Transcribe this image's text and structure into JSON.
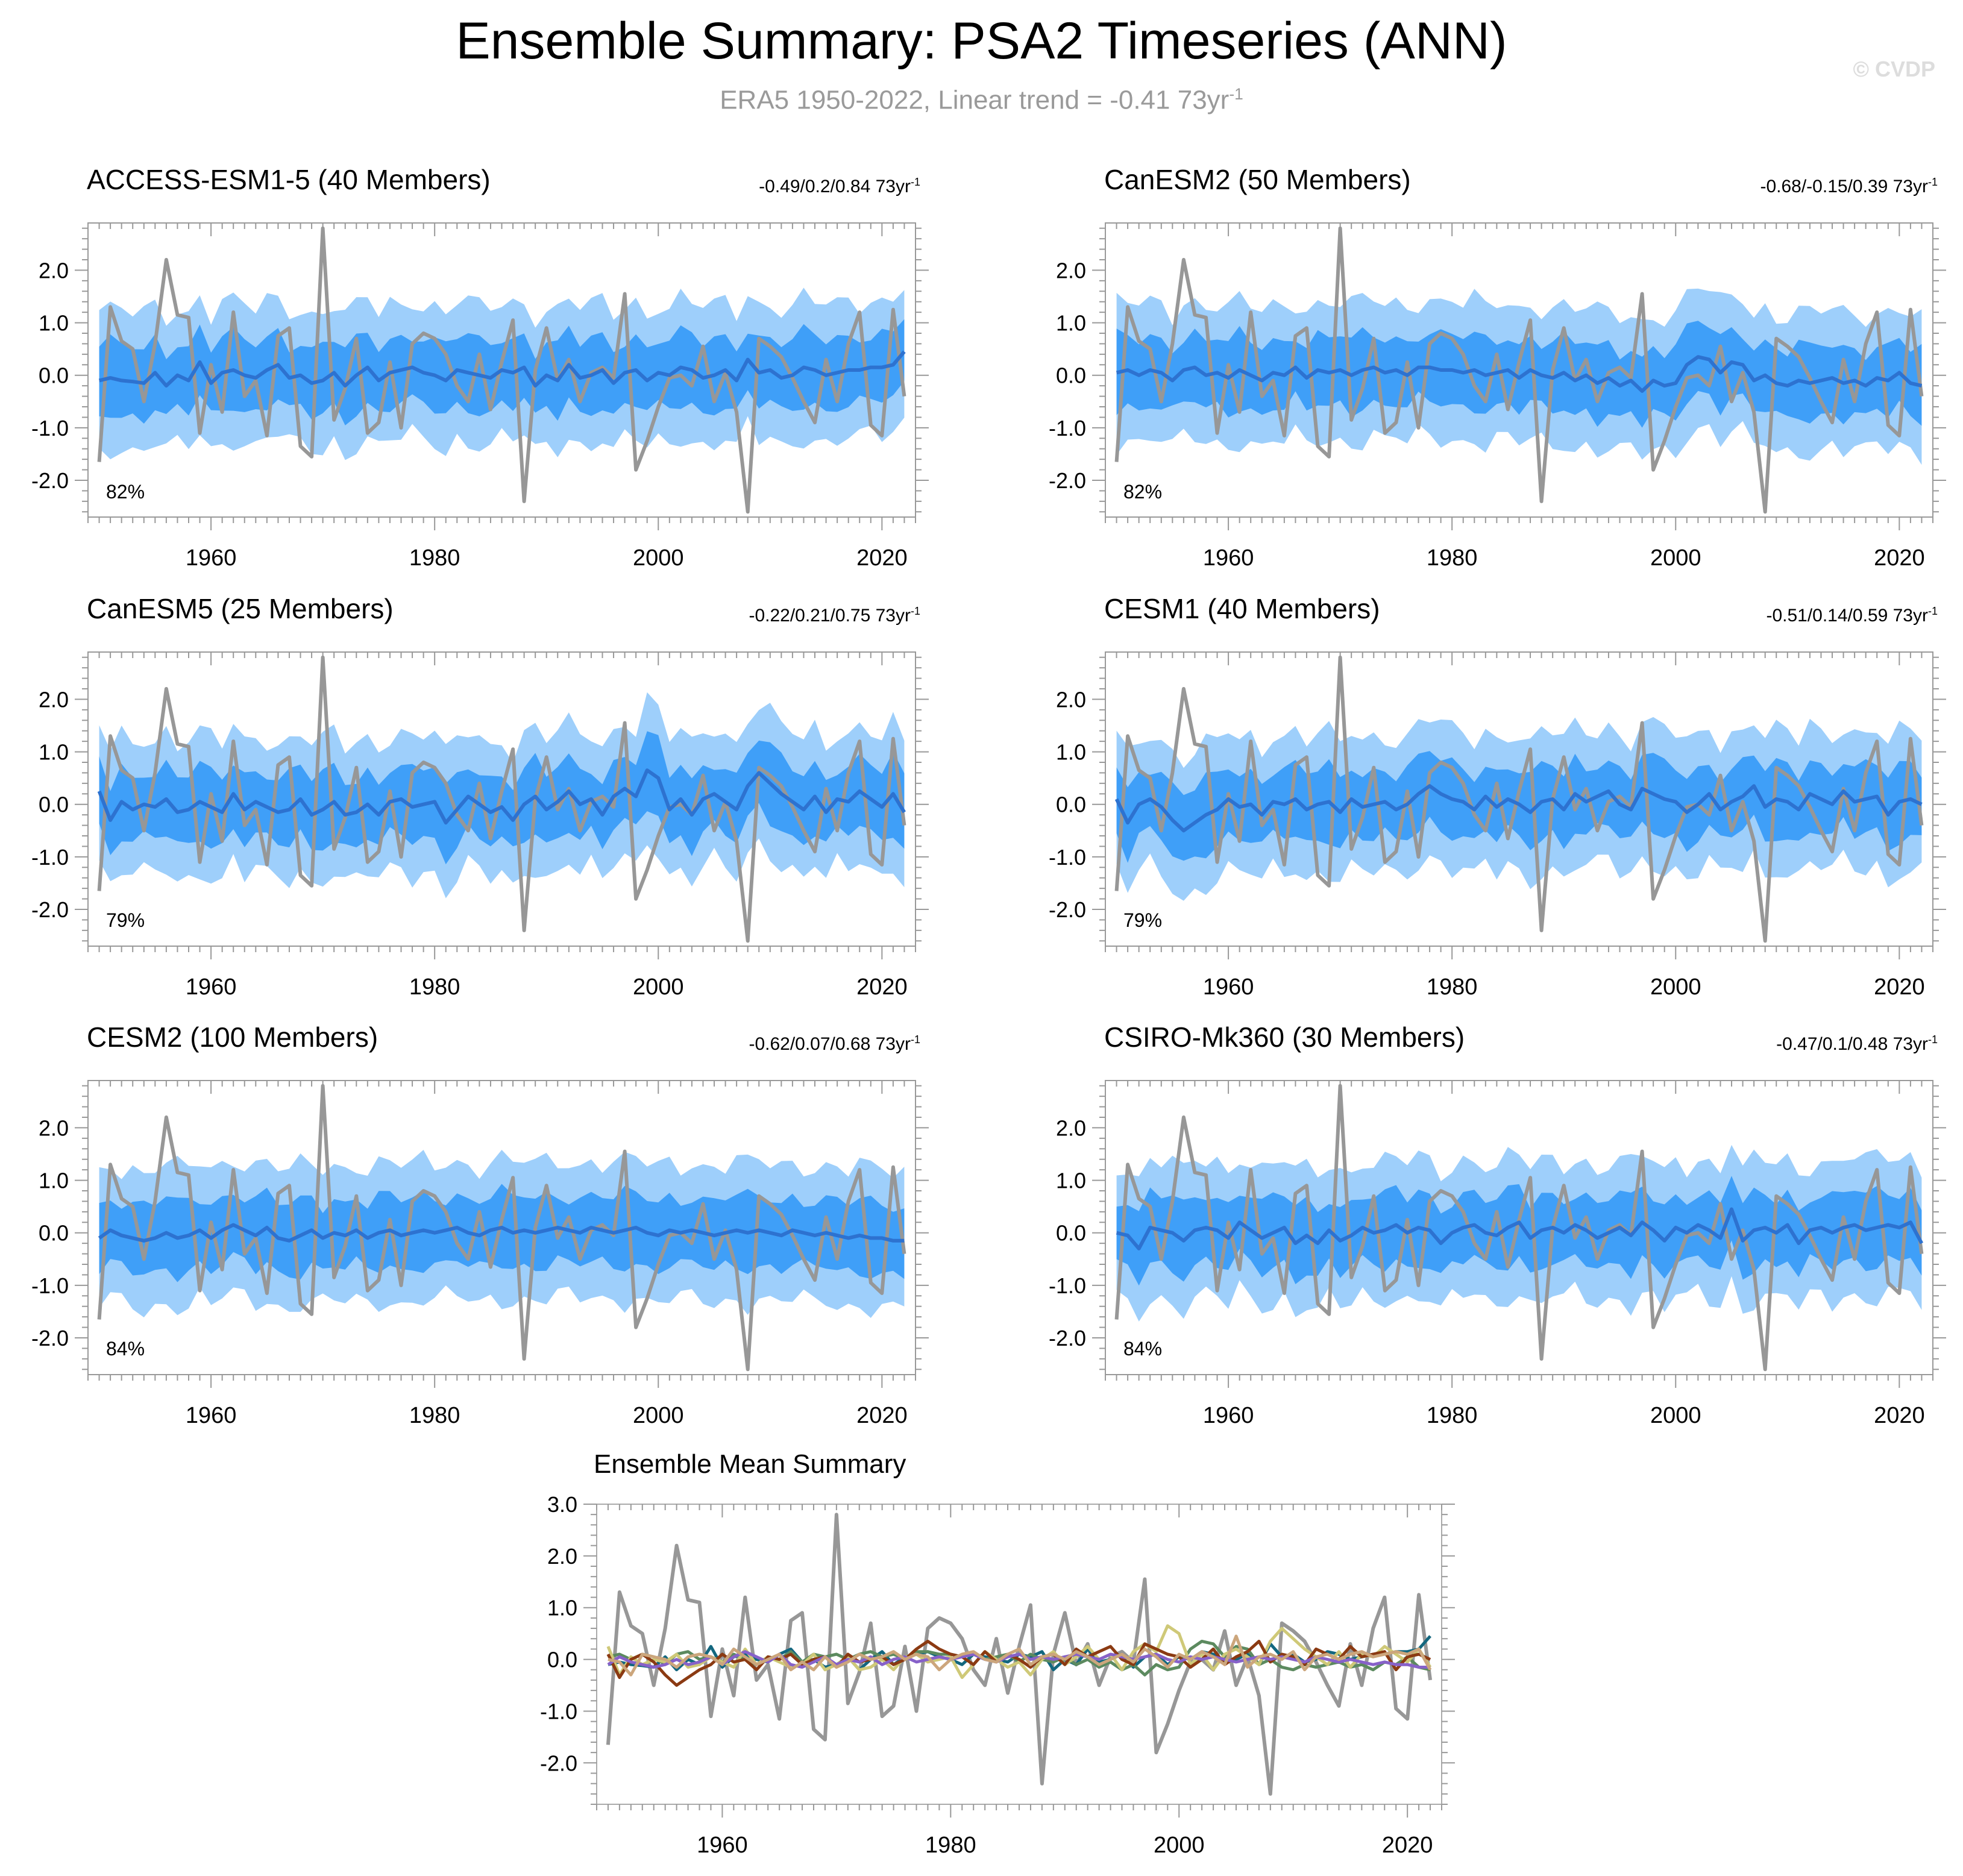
{
  "title": "Ensemble Summary: PSA2 Timeseries (ANN)",
  "subtitle": "ERA5 1950-2022, Linear trend = -0.41 73yr",
  "subtitle_sup": "-1",
  "watermark": "© CVDP",
  "trend_sup": "-1",
  "colors": {
    "outer_band": "#9ecffb",
    "inner_band": "#3f9ff8",
    "ensemble_mean": "#2d72d0",
    "observations": "#979797"
  },
  "chart_data": [
    {
      "type": "line",
      "title": "ACCESS-ESM1-5 (40 Members)",
      "title_color": "#13677f",
      "trend_label": "-0.49/0.2/0.84 73yr",
      "percent_label": "82%",
      "ylim": [
        -2.7,
        2.9
      ],
      "xlim": [
        1949,
        2023
      ],
      "yticks": [
        "2.0",
        "1.0",
        "0.0",
        "-1.0",
        "-2.0"
      ],
      "xticks": [
        "1960",
        "1980",
        "2000",
        "2020"
      ],
      "series": [
        {
          "values": [
            -0.1,
            -0.05,
            -0.1,
            -0.12,
            -0.15,
            0.05,
            -0.2,
            0.0,
            -0.1,
            0.25,
            -0.15,
            0.05,
            0.1,
            0.0,
            -0.05,
            0.1,
            0.2,
            -0.05,
            0.0,
            -0.15,
            -0.1,
            0.05,
            -0.2,
            0.0,
            0.15,
            -0.1,
            0.05,
            0.1,
            0.15,
            0.05,
            0.0,
            -0.1,
            0.1,
            0.05,
            0.0,
            -0.05,
            0.1,
            0.05,
            0.15,
            -0.2,
            0.0,
            -0.1,
            0.2,
            -0.05,
            0.0,
            0.1,
            -0.15,
            0.05,
            0.1,
            -0.1,
            0.05,
            0.0,
            0.15,
            0.1,
            -0.05,
            0.0,
            0.1,
            -0.1,
            0.3,
            0.05,
            0.1,
            -0.05,
            0.0,
            0.15,
            0.1,
            0.0,
            0.05,
            0.1,
            0.1,
            0.15,
            0.15,
            0.2,
            0.45
          ]
        }
      ]
    },
    {
      "type": "line",
      "title": "CanESM2 (50 Members)",
      "title_color": "#5c8a5f",
      "trend_label": "-0.68/-0.15/0.39 73yr",
      "percent_label": "82%",
      "ylim": [
        -2.7,
        2.9
      ],
      "xlim": [
        1949,
        2023
      ],
      "yticks": [
        "2.0",
        "1.0",
        "0.0",
        "-1.0",
        "-2.0"
      ],
      "xticks": [
        "1960",
        "1980",
        "2000",
        "2020"
      ],
      "series": [
        {
          "values": [
            0.05,
            0.1,
            0.0,
            0.1,
            0.05,
            -0.1,
            0.1,
            0.15,
            0.0,
            0.05,
            -0.05,
            0.1,
            0.0,
            -0.1,
            0.05,
            0.0,
            0.15,
            -0.05,
            0.1,
            0.05,
            0.1,
            0.0,
            0.1,
            0.15,
            0.05,
            0.1,
            0.0,
            0.15,
            0.15,
            0.1,
            0.1,
            0.05,
            0.1,
            0.0,
            0.05,
            0.1,
            -0.05,
            0.1,
            0.0,
            -0.05,
            0.05,
            -0.1,
            0.0,
            -0.15,
            -0.05,
            -0.2,
            -0.1,
            -0.3,
            -0.1,
            -0.2,
            -0.15,
            0.2,
            0.35,
            0.3,
            0.05,
            0.25,
            0.2,
            -0.1,
            0.0,
            -0.15,
            -0.2,
            -0.1,
            -0.15,
            -0.1,
            -0.05,
            -0.15,
            -0.1,
            -0.2,
            -0.05,
            -0.1,
            0.05,
            -0.15,
            -0.2
          ]
        }
      ]
    },
    {
      "type": "line",
      "title": "CanESM5 (25 Members)",
      "title_color": "#cfc978",
      "trend_label": "-0.22/0.21/0.75 73yr",
      "percent_label": "79%",
      "ylim": [
        -2.7,
        2.9
      ],
      "xlim": [
        1949,
        2023
      ],
      "yticks": [
        "2.0",
        "1.0",
        "0.0",
        "-1.0",
        "-2.0"
      ],
      "xticks": [
        "1960",
        "1980",
        "2000",
        "2020"
      ],
      "series": [
        {
          "values": [
            0.25,
            -0.3,
            0.05,
            -0.1,
            0.0,
            -0.05,
            0.1,
            -0.15,
            -0.1,
            0.05,
            -0.05,
            -0.15,
            0.2,
            -0.1,
            0.05,
            -0.05,
            -0.15,
            -0.1,
            0.1,
            -0.2,
            -0.1,
            0.05,
            -0.2,
            -0.15,
            0.0,
            -0.2,
            0.05,
            0.1,
            -0.05,
            0.0,
            0.05,
            -0.35,
            -0.1,
            0.15,
            0.0,
            -0.15,
            -0.05,
            -0.3,
            0.0,
            0.15,
            -0.1,
            0.05,
            0.25,
            0.0,
            0.1,
            -0.2,
            0.15,
            0.3,
            0.15,
            0.65,
            0.5,
            -0.1,
            0.1,
            -0.2,
            0.1,
            0.2,
            0.05,
            -0.1,
            0.35,
            0.6,
            0.4,
            0.2,
            0.05,
            -0.1,
            0.15,
            -0.15,
            0.1,
            0.05,
            0.25,
            0.1,
            -0.05,
            0.2,
            -0.15
          ]
        }
      ]
    },
    {
      "type": "line",
      "title": "CESM1 (40 Members)",
      "title_color": "#8b3a12",
      "trend_label": "-0.51/0.14/0.59 73yr",
      "percent_label": "79%",
      "ylim": [
        -2.7,
        2.9
      ],
      "xlim": [
        1949,
        2023
      ],
      "yticks": [
        "2.0",
        "1.0",
        "0.0",
        "-1.0",
        "-2.0"
      ],
      "xticks": [
        "1960",
        "1980",
        "2000",
        "2020"
      ],
      "series": [
        {
          "values": [
            0.1,
            -0.35,
            0.0,
            0.1,
            -0.05,
            -0.3,
            -0.5,
            -0.35,
            -0.2,
            -0.1,
            0.1,
            -0.05,
            0.0,
            -0.2,
            0.05,
            0.0,
            0.1,
            -0.1,
            0.0,
            0.05,
            -0.15,
            0.1,
            -0.05,
            0.0,
            0.05,
            -0.1,
            0.0,
            0.2,
            0.35,
            0.2,
            0.1,
            0.05,
            -0.1,
            0.15,
            -0.05,
            0.1,
            0.0,
            -0.15,
            0.05,
            0.1,
            -0.1,
            0.2,
            0.05,
            0.15,
            0.25,
            0.0,
            -0.1,
            0.3,
            0.2,
            0.1,
            0.05,
            -0.15,
            0.0,
            0.2,
            -0.1,
            0.05,
            0.15,
            0.35,
            -0.05,
            0.1,
            0.05,
            -0.1,
            0.2,
            0.1,
            0.0,
            0.25,
            0.05,
            0.1,
            0.15,
            -0.2,
            0.05,
            0.1,
            0.0
          ]
        }
      ]
    },
    {
      "type": "line",
      "title": "CESM2 (100 Members)",
      "title_color": "#8761c9",
      "trend_label": "-0.62/0.07/0.68 73yr",
      "percent_label": "84%",
      "ylim": [
        -2.7,
        2.9
      ],
      "xlim": [
        1949,
        2023
      ],
      "yticks": [
        "2.0",
        "1.0",
        "0.0",
        "-1.0",
        "-2.0"
      ],
      "xticks": [
        "1960",
        "1980",
        "2000",
        "2020"
      ],
      "series": [
        {
          "values": [
            -0.1,
            0.05,
            -0.05,
            -0.1,
            -0.15,
            -0.1,
            0.0,
            -0.1,
            -0.05,
            0.05,
            -0.1,
            0.05,
            0.15,
            0.05,
            -0.05,
            0.1,
            -0.1,
            -0.15,
            -0.05,
            0.05,
            -0.1,
            0.0,
            -0.05,
            0.05,
            -0.1,
            0.0,
            0.05,
            -0.05,
            0.0,
            0.05,
            0.0,
            0.05,
            0.1,
            0.0,
            -0.05,
            0.05,
            0.1,
            0.0,
            0.05,
            0.0,
            0.05,
            0.1,
            0.05,
            0.0,
            0.1,
            0.05,
            0.0,
            0.05,
            0.1,
            0.0,
            -0.05,
            0.05,
            0.0,
            0.05,
            0.0,
            -0.05,
            0.0,
            0.05,
            0.0,
            0.05,
            0.0,
            -0.05,
            0.05,
            0.0,
            -0.05,
            0.0,
            -0.05,
            -0.1,
            -0.05,
            -0.1,
            -0.1,
            -0.15,
            -0.15
          ]
        }
      ]
    },
    {
      "type": "line",
      "title": "CSIRO-Mk360 (30 Members)",
      "title_color": "#cca67c",
      "trend_label": "-0.47/0.1/0.48 73yr",
      "percent_label": "84%",
      "ylim": [
        -2.7,
        2.9
      ],
      "xlim": [
        1949,
        2023
      ],
      "yticks": [
        "2.0",
        "1.0",
        "0.0",
        "-1.0",
        "-2.0"
      ],
      "xticks": [
        "1960",
        "1980",
        "2000",
        "2020"
      ],
      "series": [
        {
          "values": [
            0.0,
            -0.05,
            -0.3,
            0.1,
            0.05,
            0.0,
            -0.15,
            0.05,
            0.1,
            0.05,
            -0.1,
            0.2,
            0.05,
            -0.1,
            0.0,
            0.1,
            -0.2,
            -0.05,
            -0.2,
            0.05,
            -0.15,
            -0.05,
            0.1,
            0.0,
            0.05,
            0.15,
            0.0,
            0.1,
            0.05,
            -0.2,
            0.0,
            0.1,
            0.15,
            0.0,
            -0.05,
            0.1,
            0.2,
            -0.1,
            0.05,
            0.1,
            0.0,
            0.15,
            0.05,
            -0.1,
            0.0,
            0.1,
            -0.05,
            0.2,
            0.05,
            -0.15,
            0.1,
            0.0,
            0.15,
            0.05,
            -0.1,
            0.45,
            -0.15,
            0.05,
            0.1,
            0.0,
            0.15,
            -0.2,
            0.05,
            0.1,
            0.0,
            0.1,
            0.15,
            0.05,
            0.1,
            0.15,
            0.1,
            0.2,
            -0.2
          ]
        }
      ]
    },
    {
      "type": "line",
      "title": "Ensemble Mean Summary",
      "ylim": [
        -2.8,
        3.0
      ],
      "xlim": [
        1949,
        2023
      ],
      "yticks": [
        "3.0",
        "2.0",
        "1.0",
        "0.0",
        "-1.0",
        "-2.0"
      ],
      "xticks": [
        "1960",
        "1980",
        "2000",
        "2020"
      ]
    }
  ],
  "observations": {
    "start_year": 1950,
    "values": [
      -1.65,
      1.3,
      0.65,
      0.5,
      -0.5,
      0.6,
      2.2,
      1.15,
      1.1,
      -1.1,
      0.2,
      -0.7,
      1.2,
      -0.4,
      -0.1,
      -1.15,
      0.75,
      0.9,
      -1.35,
      -1.55,
      2.8,
      -0.85,
      -0.25,
      0.7,
      -1.1,
      -0.9,
      0.25,
      -1.0,
      0.6,
      0.8,
      0.7,
      0.4,
      -0.2,
      -0.5,
      0.4,
      -0.65,
      0.25,
      1.05,
      -2.4,
      0.1,
      0.9,
      -0.1,
      0.3,
      -0.5,
      0.05,
      0.15,
      -0.05,
      1.55,
      -1.8,
      -1.25,
      -0.6,
      -0.05,
      0.0,
      -0.2,
      0.55,
      -0.5,
      0.05,
      -0.7,
      -2.6,
      0.7,
      0.55,
      0.35,
      -0.05,
      -0.5,
      -0.9,
      0.3,
      -0.5,
      0.6,
      1.2,
      -0.95,
      -1.15,
      1.25,
      -0.4
    ]
  }
}
